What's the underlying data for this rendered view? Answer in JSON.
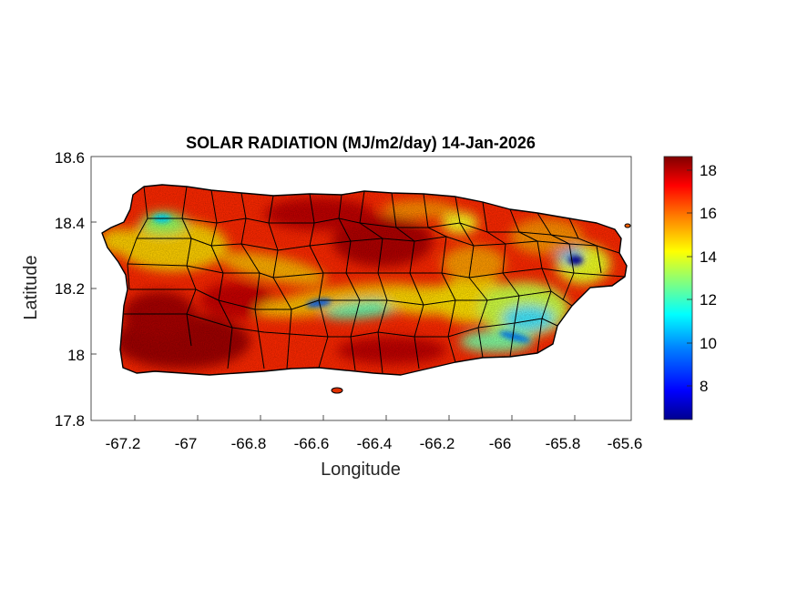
{
  "map": {
    "title": "SOLAR RADIATION (MJ/m2/day) 14-Jan-2026",
    "xlabel": "Longitude",
    "ylabel": "Latitude",
    "region": "Puerto Rico",
    "xlim": [
      -67.3,
      -65.58
    ],
    "ylim": [
      17.8,
      18.6
    ],
    "xticks": [
      "-67.2",
      "-67",
      "-66.8",
      "-66.6",
      "-66.4",
      "-66.2",
      "-66",
      "-65.8",
      "-65.6"
    ],
    "xtick_values": [
      -67.2,
      -67.0,
      -66.8,
      -66.6,
      -66.4,
      -66.2,
      -66.0,
      -65.8,
      -65.6
    ],
    "yticks": [
      "18.6",
      "18.4",
      "18.2",
      "18",
      "17.8"
    ],
    "ytick_values": [
      18.6,
      18.4,
      18.2,
      18.0,
      17.8
    ],
    "grid": false,
    "colormap": "jet",
    "colorbar": {
      "range": [
        6.6,
        18.8
      ],
      "ticks": [
        "18",
        "16",
        "14",
        "12",
        "10",
        "8"
      ],
      "tick_values": [
        18,
        16,
        14,
        12,
        10,
        8
      ],
      "colors": [
        "#00008f",
        "#0000ff",
        "#0080ff",
        "#00ffff",
        "#80ff80",
        "#ffff00",
        "#ff8000",
        "#ff0000",
        "#800000"
      ]
    },
    "boundary_color": "#000000"
  }
}
